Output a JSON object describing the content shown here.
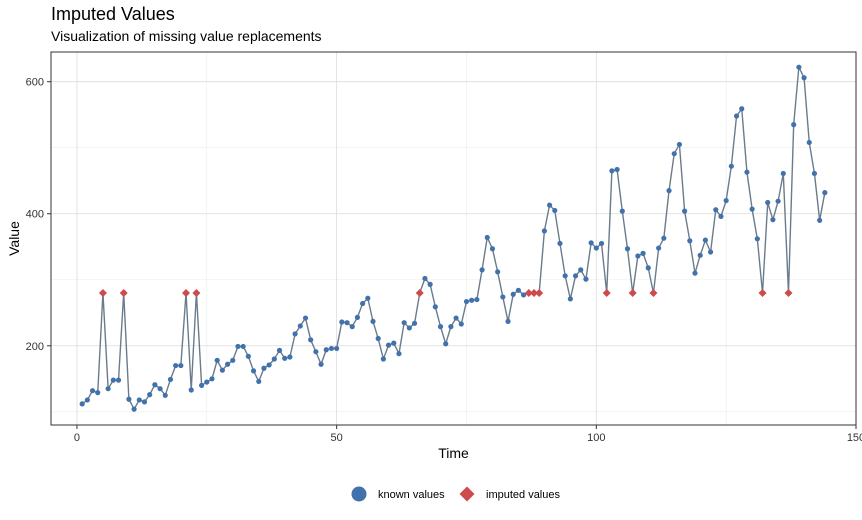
{
  "title": "Imputed Values",
  "subtitle": "Visualization of missing value replacements",
  "chart_data": {
    "type": "line",
    "xlabel": "Time",
    "ylabel": "Value",
    "xlim": [
      -5,
      150
    ],
    "ylim": [
      80,
      645
    ],
    "x_ticks": [
      0,
      50,
      100,
      150
    ],
    "y_ticks": [
      200,
      400,
      600
    ],
    "grid": true,
    "legend_position": "bottom",
    "colors": {
      "known": "#4272AB",
      "imputed": "#CD4A4D",
      "line": "#6A7B8C"
    },
    "series": [
      {
        "name": "known values",
        "values": [
          112,
          118,
          132,
          129,
          null,
          135,
          148,
          148,
          null,
          119,
          104,
          118,
          115,
          126,
          141,
          135,
          125,
          149,
          170,
          170,
          null,
          133,
          null,
          140,
          145,
          150,
          178,
          163,
          172,
          178,
          199,
          199,
          184,
          162,
          146,
          166,
          171,
          180,
          193,
          181,
          183,
          218,
          230,
          242,
          209,
          191,
          172,
          194,
          196,
          196,
          236,
          235,
          229,
          243,
          264,
          272,
          237,
          211,
          180,
          201,
          204,
          188,
          235,
          227,
          234,
          null,
          302,
          293,
          259,
          229,
          203,
          229,
          242,
          233,
          267,
          269,
          270,
          315,
          364,
          347,
          312,
          274,
          237,
          278,
          284,
          277,
          null,
          null,
          null,
          374,
          413,
          405,
          355,
          306,
          271,
          306,
          315,
          301,
          356,
          348,
          355,
          null,
          465,
          467,
          404,
          347,
          null,
          336,
          340,
          318,
          null,
          348,
          363,
          435,
          491,
          505,
          404,
          359,
          310,
          337,
          360,
          342,
          406,
          396,
          420,
          472,
          548,
          559,
          463,
          407,
          362,
          null,
          417,
          391,
          419,
          461,
          null,
          535,
          622,
          606,
          508,
          461,
          390,
          432
        ]
      },
      {
        "name": "imputed values",
        "points": [
          [
            5,
            280
          ],
          [
            9,
            280
          ],
          [
            21,
            280
          ],
          [
            23,
            280
          ],
          [
            66,
            280
          ],
          [
            87,
            280
          ],
          [
            88,
            280
          ],
          [
            89,
            280
          ],
          [
            102,
            280
          ],
          [
            107,
            280
          ],
          [
            111,
            280
          ],
          [
            132,
            280
          ],
          [
            137,
            280
          ]
        ]
      }
    ]
  },
  "legend": {
    "known_label": "known values",
    "imputed_label": "imputed values"
  }
}
